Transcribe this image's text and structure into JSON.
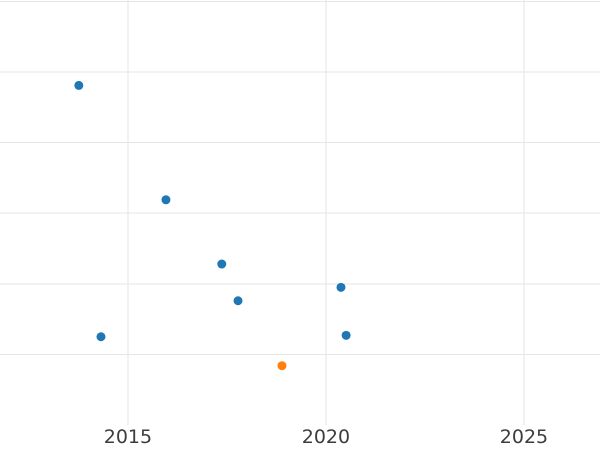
{
  "chart_data": {
    "type": "scatter",
    "title": "",
    "xlabel": "",
    "ylabel": "",
    "x_tick_labels": [
      "2015",
      "2020",
      "2025"
    ],
    "x_ticks": [
      2015,
      2020,
      2025
    ],
    "x_range": [
      2011.77,
      2026.92
    ],
    "y_range": [
      0,
      6.02
    ],
    "y_gridline_values": [
      1,
      2,
      3,
      4,
      5,
      6
    ],
    "y_axis_labels_visible": false,
    "grid": true,
    "legend_position": "none",
    "background_color": "#ffffff",
    "gridline_color": "#e6e6e6",
    "tick_label_color": "#3d3d3d",
    "marker_radius_px": 4.5,
    "series": [
      {
        "name": "blue-series",
        "color": "#1f77b4",
        "points": [
          {
            "x": 2013.76,
            "y": 4.81
          },
          {
            "x": 2014.32,
            "y": 1.25
          },
          {
            "x": 2015.96,
            "y": 3.19
          },
          {
            "x": 2017.37,
            "y": 2.28
          },
          {
            "x": 2017.78,
            "y": 1.76
          },
          {
            "x": 2020.38,
            "y": 1.95
          },
          {
            "x": 2020.51,
            "y": 1.27
          }
        ]
      },
      {
        "name": "orange-series",
        "color": "#ff7f0e",
        "points": [
          {
            "x": 2018.89,
            "y": 0.84
          }
        ]
      }
    ]
  }
}
